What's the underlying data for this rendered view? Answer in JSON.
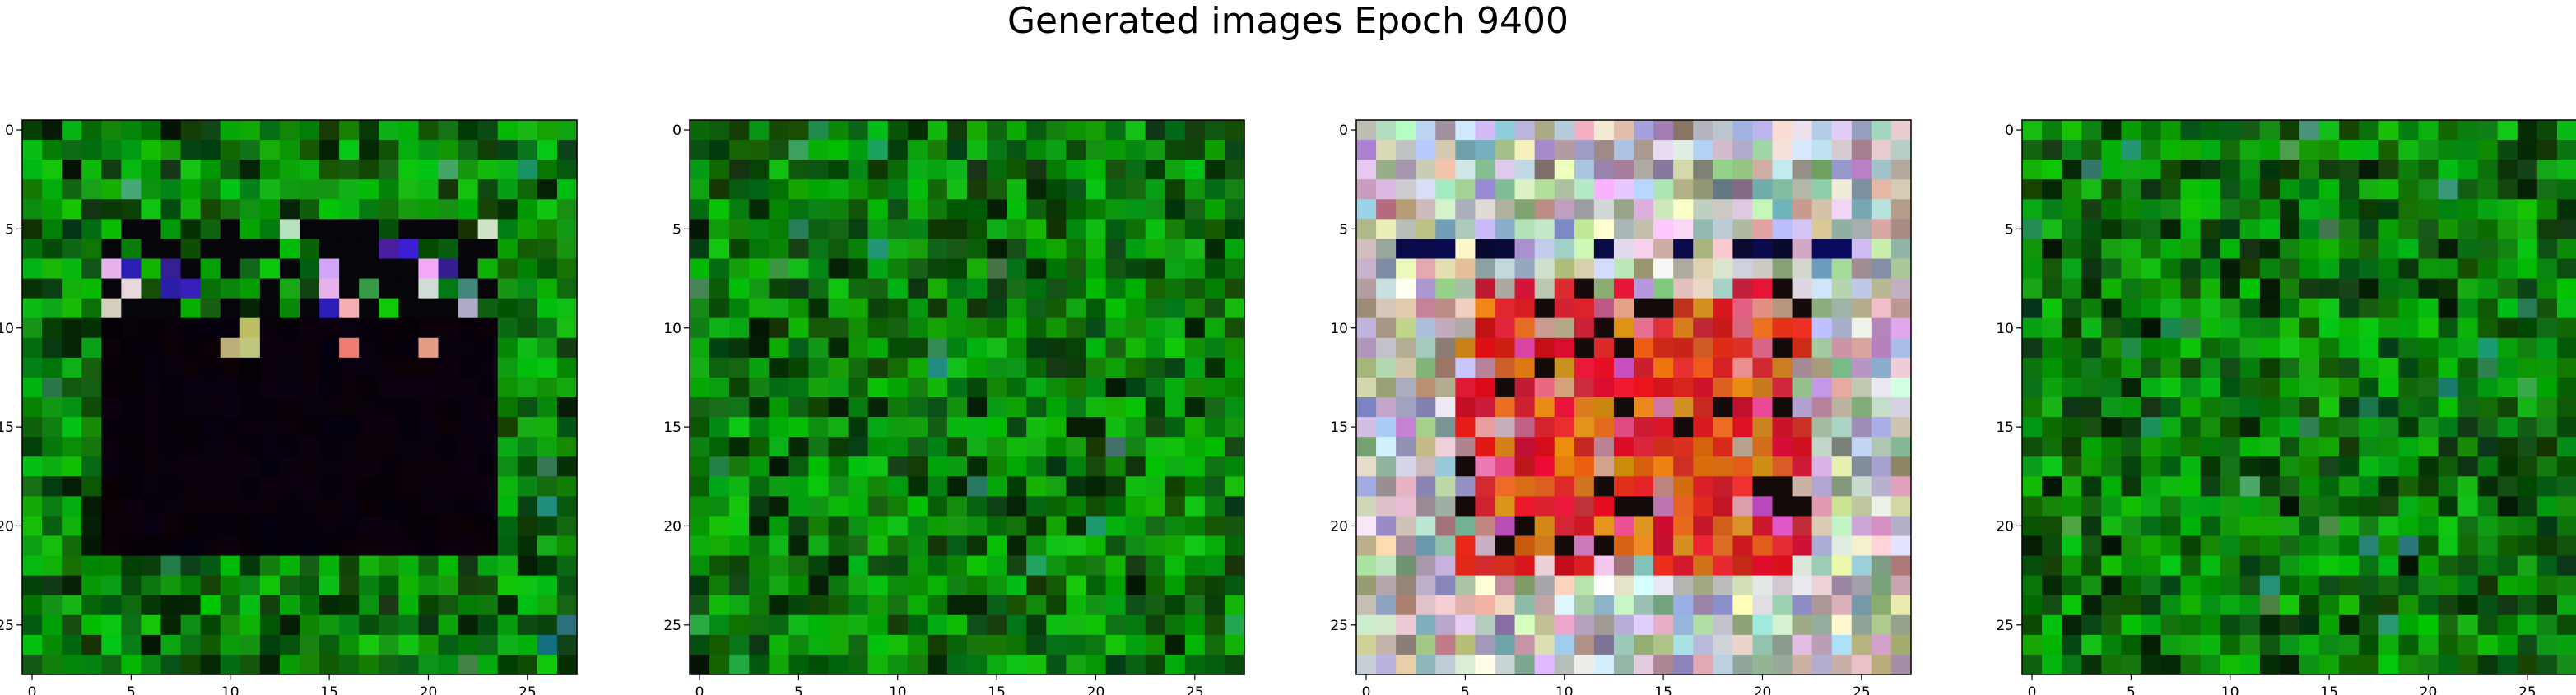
{
  "figure": {
    "title": "Generated images Epoch 9400"
  },
  "panels": [
    {
      "name": "generated-image-1",
      "grid_size": 28,
      "texture": "green-noise",
      "overlay": "black-box-with-bright-top-row",
      "x_ticks": [
        "0",
        "5",
        "10",
        "15",
        "20",
        "25"
      ],
      "y_ticks": [
        "0",
        "5",
        "10",
        "15",
        "20",
        "25"
      ]
    },
    {
      "name": "generated-image-2",
      "grid_size": 28,
      "texture": "green-noise",
      "overlay": "none",
      "x_ticks": [
        "0",
        "5",
        "10",
        "15",
        "20",
        "25"
      ],
      "y_ticks": [
        "0",
        "5",
        "10",
        "15",
        "20",
        "25"
      ]
    },
    {
      "name": "generated-image-3",
      "grid_size": 28,
      "texture": "pastel-noise",
      "overlay": "red-orange-center",
      "x_ticks": [
        "0",
        "5",
        "10",
        "15",
        "20",
        "25"
      ],
      "y_ticks": [
        "0",
        "5",
        "10",
        "15",
        "20",
        "25"
      ]
    },
    {
      "name": "generated-image-4",
      "grid_size": 28,
      "texture": "green-noise",
      "overlay": "none",
      "x_ticks": [
        "0",
        "5",
        "10",
        "15",
        "20",
        "25"
      ],
      "y_ticks": [
        "0",
        "5",
        "10",
        "15",
        "20",
        "25"
      ]
    }
  ],
  "colors": {
    "background": "#ffffff",
    "axis": "#000000",
    "green_base": "#0a8a12",
    "dark_box": "#060208",
    "red_center": "#d81818",
    "orange_center": "#e07a10"
  }
}
